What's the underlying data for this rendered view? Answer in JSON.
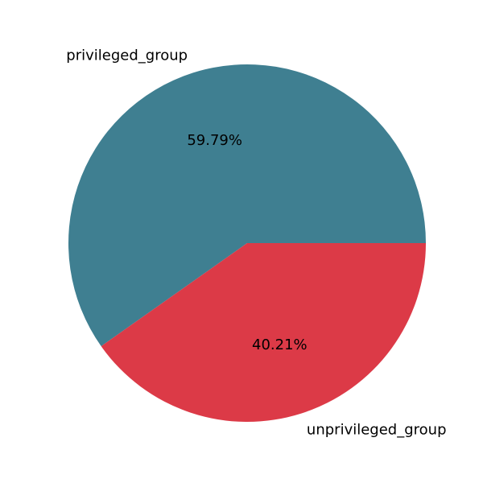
{
  "chart_data": {
    "type": "pie",
    "title": "",
    "slices": [
      {
        "label": "privileged_group",
        "value": 59.79,
        "percent_label": "59.79%",
        "color": "#3f7f91"
      },
      {
        "label": "unprivileged_group",
        "value": 40.21,
        "percent_label": "40.21%",
        "color": "#dc3a47"
      }
    ],
    "start_angle_deg": 0,
    "direction": "counterclockwise"
  }
}
